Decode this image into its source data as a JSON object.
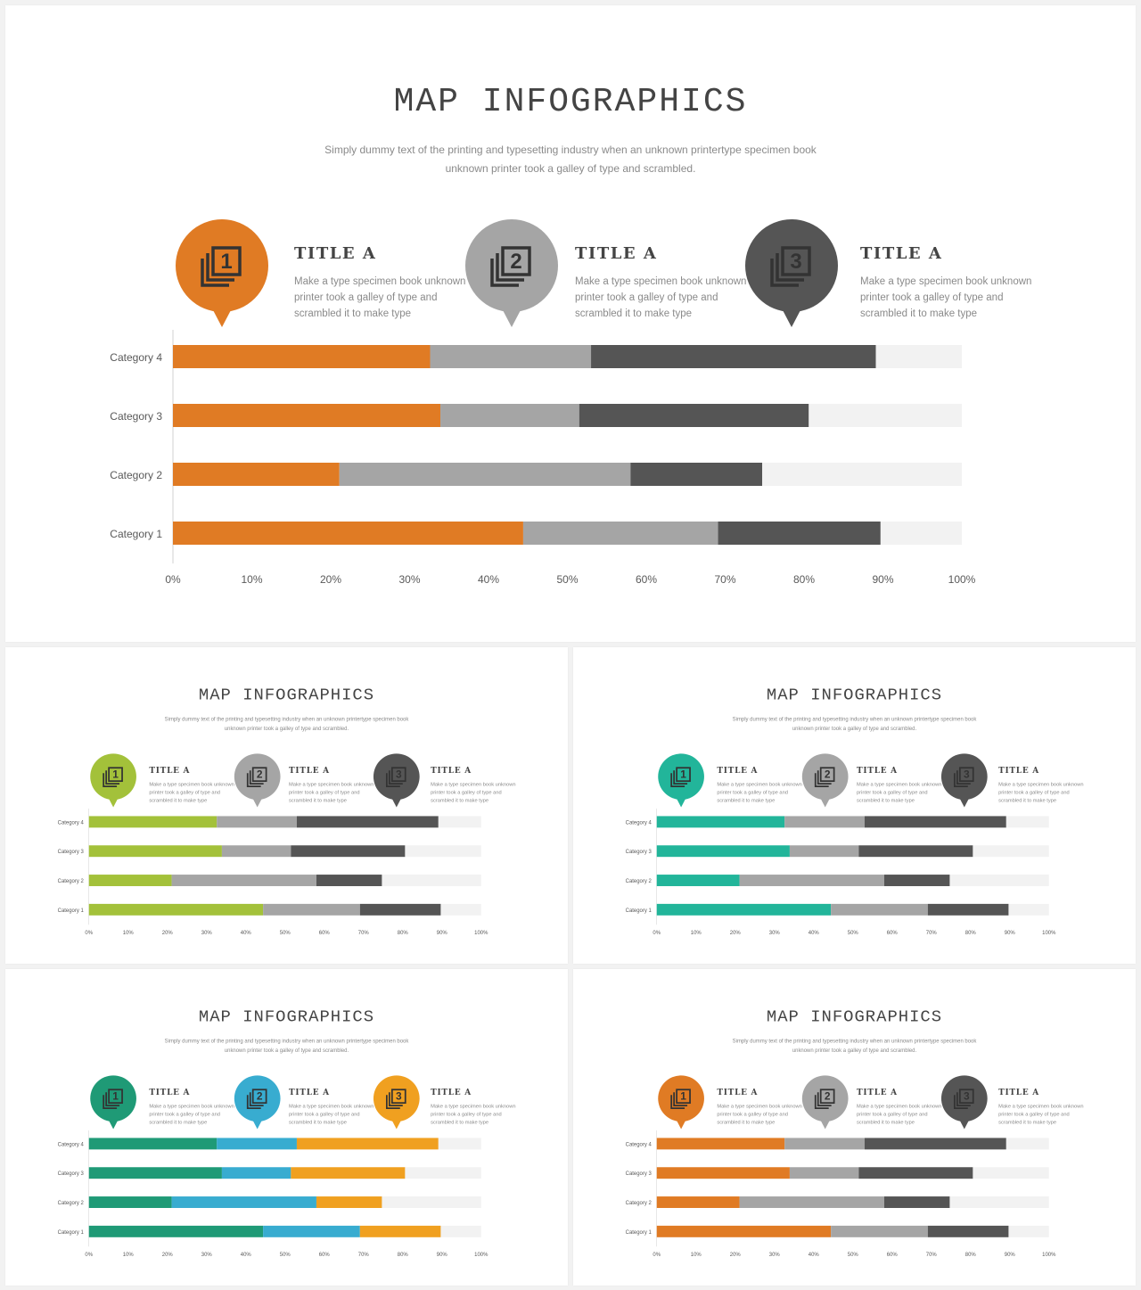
{
  "slides": [
    {
      "title": "MAP INFOGRAPHICS",
      "subtitle_lines": [
        "Simply dummy text of the printing and typesetting industry when an unknown printertype specimen book",
        "unknown printer took a galley of type and scrambled."
      ],
      "cards": [
        {
          "number": "1",
          "icon": "stack-number-icon",
          "title": "TITLE A",
          "lines": [
            "Make a type specimen book unknown",
            "printer took a galley of type and",
            "scrambled it to make type"
          ]
        },
        {
          "number": "2",
          "icon": "stack-number-icon",
          "title": "TITLE A",
          "lines": [
            "Make a type specimen book unknown",
            "printer took a galley of type and",
            "scrambled it to make type"
          ]
        },
        {
          "number": "3",
          "icon": "stack-number-icon",
          "title": "TITLE A",
          "lines": [
            "Make a type specimen book unknown",
            "printer took a galley of type and",
            "scrambled it to make type"
          ]
        }
      ],
      "colors": [
        "#e07b24",
        "#a5a5a5",
        "#555555"
      ],
      "rest_color": "#f2f2f2",
      "chart_data": {
        "type": "bar",
        "orientation": "horizontal",
        "stacked": true,
        "categories": [
          "Category 4",
          "Category 3",
          "Category 2",
          "Category 1"
        ],
        "series": [
          {
            "values": [
              32.6,
              33.9,
              21.1,
              44.4
            ]
          },
          {
            "values": [
              20.4,
              17.6,
              36.9,
              24.7
            ]
          },
          {
            "values": [
              36.1,
              29.1,
              16.7,
              20.6
            ]
          },
          {
            "values": [
              10.9,
              19.4,
              25.3,
              10.3
            ]
          }
        ],
        "xlim": [
          0,
          100
        ],
        "xticks": [
          "0%",
          "10%",
          "20%",
          "30%",
          "40%",
          "50%",
          "60%",
          "70%",
          "80%",
          "90%",
          "100%"
        ],
        "grid": false,
        "legend": "none"
      }
    },
    {
      "title": "MAP INFOGRAPHICS",
      "subtitle_lines": [
        "Simply dummy text of the printing and typesetting industry when an unknown printertype specimen book",
        "unknown printer took a galley of type and scrambled."
      ],
      "cards": [
        {
          "number": "1",
          "icon": "stack-number-icon",
          "title": "TITLE A",
          "lines": [
            "Make a type specimen book unknown",
            "printer took a galley of type and",
            "scrambled it to make type"
          ]
        },
        {
          "number": "2",
          "icon": "stack-number-icon",
          "title": "TITLE A",
          "lines": [
            "Make a type specimen book unknown",
            "printer took a galley of type and",
            "scrambled it to make type"
          ]
        },
        {
          "number": "3",
          "icon": "stack-number-icon",
          "title": "TITLE A",
          "lines": [
            "Make a type specimen book unknown",
            "printer took a galley of type and",
            "scrambled it to make type"
          ]
        }
      ],
      "colors": [
        "#a3c13a",
        "#a5a5a5",
        "#555555"
      ],
      "rest_color": "#f2f2f2",
      "chart_data": {
        "type": "bar",
        "orientation": "horizontal",
        "stacked": true,
        "categories": [
          "Category 4",
          "Category 3",
          "Category 2",
          "Category 1"
        ],
        "series": [
          {
            "values": [
              32.6,
              33.9,
              21.1,
              44.4
            ]
          },
          {
            "values": [
              20.4,
              17.6,
              36.9,
              24.7
            ]
          },
          {
            "values": [
              36.1,
              29.1,
              16.7,
              20.6
            ]
          },
          {
            "values": [
              10.9,
              19.4,
              25.3,
              10.3
            ]
          }
        ],
        "xlim": [
          0,
          100
        ],
        "xticks": [
          "0%",
          "10%",
          "20%",
          "30%",
          "40%",
          "50%",
          "60%",
          "70%",
          "80%",
          "90%",
          "100%"
        ],
        "grid": false,
        "legend": "none"
      }
    },
    {
      "title": "MAP INFOGRAPHICS",
      "subtitle_lines": [
        "Simply dummy text of the printing and typesetting industry when an unknown printertype specimen book",
        "unknown printer took a galley of type and scrambled."
      ],
      "cards": [
        {
          "number": "1",
          "icon": "stack-number-icon",
          "title": "TITLE A",
          "lines": [
            "Make a type specimen book unknown",
            "printer took a galley of type and",
            "scrambled it to make type"
          ]
        },
        {
          "number": "2",
          "icon": "stack-number-icon",
          "title": "TITLE A",
          "lines": [
            "Make a type specimen book unknown",
            "printer took a galley of type and",
            "scrambled it to make type"
          ]
        },
        {
          "number": "3",
          "icon": "stack-number-icon",
          "title": "TITLE A",
          "lines": [
            "Make a type specimen book unknown",
            "printer took a galley of type and",
            "scrambled it to make type"
          ]
        }
      ],
      "colors": [
        "#22b59a",
        "#a5a5a5",
        "#555555"
      ],
      "rest_color": "#f2f2f2",
      "chart_data": {
        "type": "bar",
        "orientation": "horizontal",
        "stacked": true,
        "categories": [
          "Category 4",
          "Category 3",
          "Category 2",
          "Category 1"
        ],
        "series": [
          {
            "values": [
              32.6,
              33.9,
              21.1,
              44.4
            ]
          },
          {
            "values": [
              20.4,
              17.6,
              36.9,
              24.7
            ]
          },
          {
            "values": [
              36.1,
              29.1,
              16.7,
              20.6
            ]
          },
          {
            "values": [
              10.9,
              19.4,
              25.3,
              10.3
            ]
          }
        ],
        "xlim": [
          0,
          100
        ],
        "xticks": [
          "0%",
          "10%",
          "20%",
          "30%",
          "40%",
          "50%",
          "60%",
          "70%",
          "80%",
          "90%",
          "100%"
        ],
        "grid": false,
        "legend": "none"
      }
    },
    {
      "title": "MAP INFOGRAPHICS",
      "subtitle_lines": [
        "Simply dummy text of the printing and typesetting industry when an unknown printertype specimen book",
        "unknown printer took a galley of type and scrambled."
      ],
      "cards": [
        {
          "number": "1",
          "icon": "stack-number-icon",
          "title": "TITLE A",
          "lines": [
            "Make a type specimen book unknown",
            "printer took a galley of type and",
            "scrambled it to make type"
          ]
        },
        {
          "number": "2",
          "icon": "stack-number-icon",
          "title": "TITLE A",
          "lines": [
            "Make a type specimen book unknown",
            "printer took a galley of type and",
            "scrambled it to make type"
          ]
        },
        {
          "number": "3",
          "icon": "stack-number-icon",
          "title": "TITLE A",
          "lines": [
            "Make a type specimen book unknown",
            "printer took a galley of type and",
            "scrambled it to make type"
          ]
        }
      ],
      "colors": [
        "#1f9a76",
        "#38acd0",
        "#f0a020"
      ],
      "rest_color": "#f2f2f2",
      "chart_data": {
        "type": "bar",
        "orientation": "horizontal",
        "stacked": true,
        "categories": [
          "Category 4",
          "Category 3",
          "Category 2",
          "Category 1"
        ],
        "series": [
          {
            "values": [
              32.6,
              33.9,
              21.1,
              44.4
            ]
          },
          {
            "values": [
              20.4,
              17.6,
              36.9,
              24.7
            ]
          },
          {
            "values": [
              36.1,
              29.1,
              16.7,
              20.6
            ]
          },
          {
            "values": [
              10.9,
              19.4,
              25.3,
              10.3
            ]
          }
        ],
        "xlim": [
          0,
          100
        ],
        "xticks": [
          "0%",
          "10%",
          "20%",
          "30%",
          "40%",
          "50%",
          "60%",
          "70%",
          "80%",
          "90%",
          "100%"
        ],
        "grid": false,
        "legend": "none"
      }
    },
    {
      "title": "MAP INFOGRAPHICS",
      "subtitle_lines": [
        "Simply dummy text of the printing and typesetting industry when an unknown printertype specimen book",
        "unknown printer took a galley of type and scrambled."
      ],
      "cards": [
        {
          "number": "1",
          "icon": "stack-number-icon",
          "title": "TITLE A",
          "lines": [
            "Make a type specimen book unknown",
            "printer took a galley of type and",
            "scrambled it to make type"
          ]
        },
        {
          "number": "2",
          "icon": "stack-number-icon",
          "title": "TITLE A",
          "lines": [
            "Make a type specimen book unknown",
            "printer took a galley of type and",
            "scrambled it to make type"
          ]
        },
        {
          "number": "3",
          "icon": "stack-number-icon",
          "title": "TITLE A",
          "lines": [
            "Make a type specimen book unknown",
            "printer took a galley of type and",
            "scrambled it to make type"
          ]
        }
      ],
      "colors": [
        "#e07b24",
        "#a5a5a5",
        "#555555"
      ],
      "rest_color": "#f2f2f2",
      "chart_data": {
        "type": "bar",
        "orientation": "horizontal",
        "stacked": true,
        "categories": [
          "Category 4",
          "Category 3",
          "Category 2",
          "Category 1"
        ],
        "series": [
          {
            "values": [
              32.6,
              33.9,
              21.1,
              44.4
            ]
          },
          {
            "values": [
              20.4,
              17.6,
              36.9,
              24.7
            ]
          },
          {
            "values": [
              36.1,
              29.1,
              16.7,
              20.6
            ]
          },
          {
            "values": [
              10.9,
              19.4,
              25.3,
              10.3
            ]
          }
        ],
        "xlim": [
          0,
          100
        ],
        "xticks": [
          "0%",
          "10%",
          "20%",
          "30%",
          "40%",
          "50%",
          "60%",
          "70%",
          "80%",
          "90%",
          "100%"
        ],
        "grid": false,
        "legend": "none"
      }
    }
  ]
}
